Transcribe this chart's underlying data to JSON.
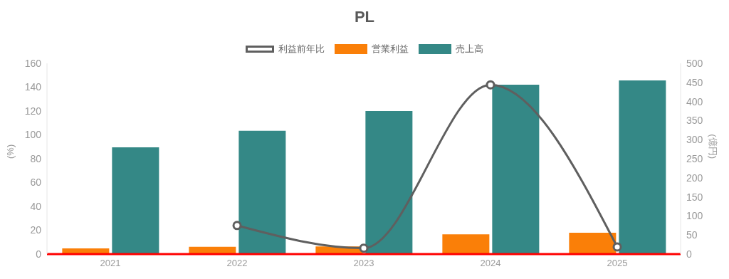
{
  "chart_data": {
    "type": "bar",
    "title": "PL",
    "ylabel": "(%)",
    "y2label": "(億円)",
    "categories": [
      "2021",
      "2022",
      "2023",
      "2024",
      "2025"
    ],
    "series": [
      {
        "name": "利益前年比",
        "type": "line",
        "color": "#5f5f5f",
        "values": [
          null,
          24,
          5,
          142,
          6
        ]
      },
      {
        "name": "営業利益",
        "axis": "y2",
        "color": "#fa7f08",
        "values": [
          15,
          19,
          20,
          52,
          56
        ]
      },
      {
        "name": "売上高",
        "axis": "y2",
        "color": "#348886",
        "values": [
          280,
          323,
          375,
          444,
          455
        ]
      }
    ],
    "ylim": [
      0,
      160
    ],
    "yticks": [
      0,
      20,
      40,
      60,
      80,
      100,
      120,
      140,
      160
    ],
    "y2lim": [
      0,
      500
    ],
    "y2ticks": [
      0,
      50,
      100,
      150,
      200,
      250,
      300,
      350,
      400,
      450,
      500
    ],
    "legend": "top",
    "marker": "circle",
    "line_style": "solid"
  }
}
